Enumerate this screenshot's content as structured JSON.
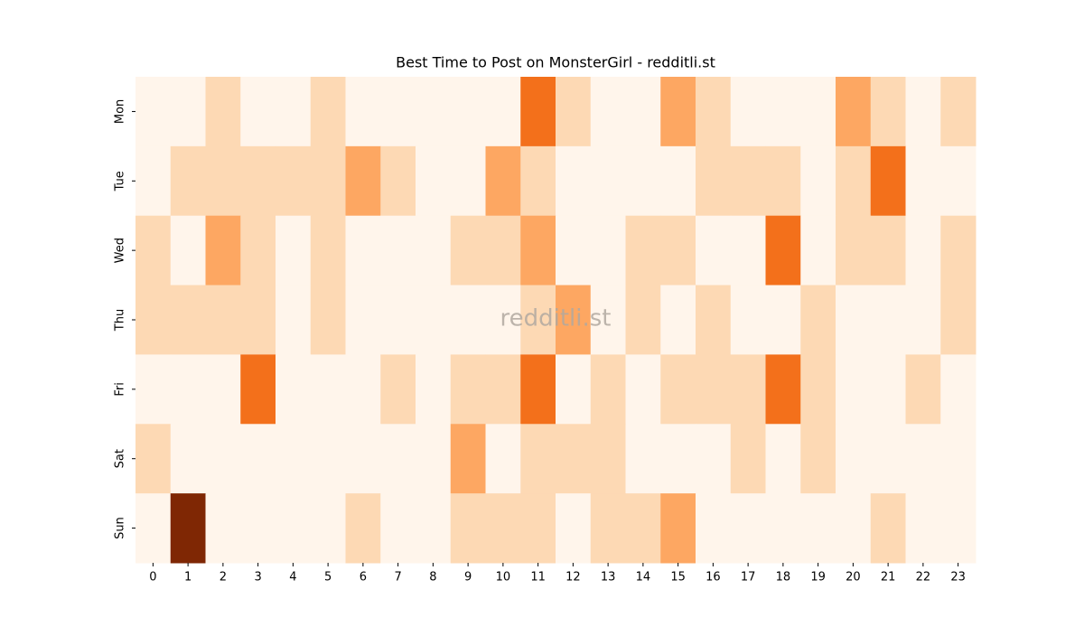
{
  "chart_data": {
    "type": "heatmap",
    "title": "Best Time to Post on MonsterGirl - redditli.st",
    "watermark": "redditli.st",
    "x": [
      0,
      1,
      2,
      3,
      4,
      5,
      6,
      7,
      8,
      9,
      10,
      11,
      12,
      13,
      14,
      15,
      16,
      17,
      18,
      19,
      20,
      21,
      22,
      23
    ],
    "categories": [
      "Mon",
      "Tue",
      "Wed",
      "Thu",
      "Fri",
      "Sat",
      "Sun"
    ],
    "values": [
      [
        0,
        0,
        1,
        0,
        0,
        1,
        0,
        0,
        0,
        0,
        0,
        3,
        1,
        0,
        0,
        2,
        1,
        0,
        0,
        0,
        2,
        1,
        0,
        1
      ],
      [
        0,
        1,
        1,
        1,
        1,
        1,
        2,
        1,
        0,
        0,
        2,
        1,
        0,
        0,
        0,
        0,
        1,
        1,
        1,
        0,
        1,
        3,
        0,
        0
      ],
      [
        1,
        0,
        2,
        1,
        0,
        1,
        0,
        0,
        0,
        1,
        1,
        2,
        0,
        0,
        1,
        1,
        0,
        0,
        3,
        0,
        1,
        1,
        0,
        1
      ],
      [
        1,
        1,
        1,
        1,
        0,
        1,
        0,
        0,
        0,
        0,
        0,
        1,
        2,
        0,
        1,
        0,
        1,
        0,
        0,
        1,
        0,
        0,
        0,
        1
      ],
      [
        0,
        0,
        0,
        3,
        0,
        0,
        0,
        1,
        0,
        1,
        1,
        3,
        0,
        1,
        0,
        1,
        1,
        1,
        3,
        1,
        0,
        0,
        1,
        0
      ],
      [
        1,
        0,
        0,
        0,
        0,
        0,
        0,
        0,
        0,
        2,
        0,
        1,
        1,
        1,
        0,
        0,
        0,
        1,
        0,
        1,
        0,
        0,
        0,
        0
      ],
      [
        0,
        5,
        0,
        0,
        0,
        0,
        1,
        0,
        0,
        1,
        1,
        1,
        0,
        1,
        1,
        2,
        0,
        0,
        0,
        0,
        0,
        1,
        0,
        0
      ]
    ],
    "colorscale": [
      "#fff5eb",
      "#fee6ce",
      "#fdd0a2",
      "#fdae6b",
      "#fd8d3c",
      "#f16913",
      "#d94801",
      "#a63603",
      "#7f2704"
    ]
  }
}
